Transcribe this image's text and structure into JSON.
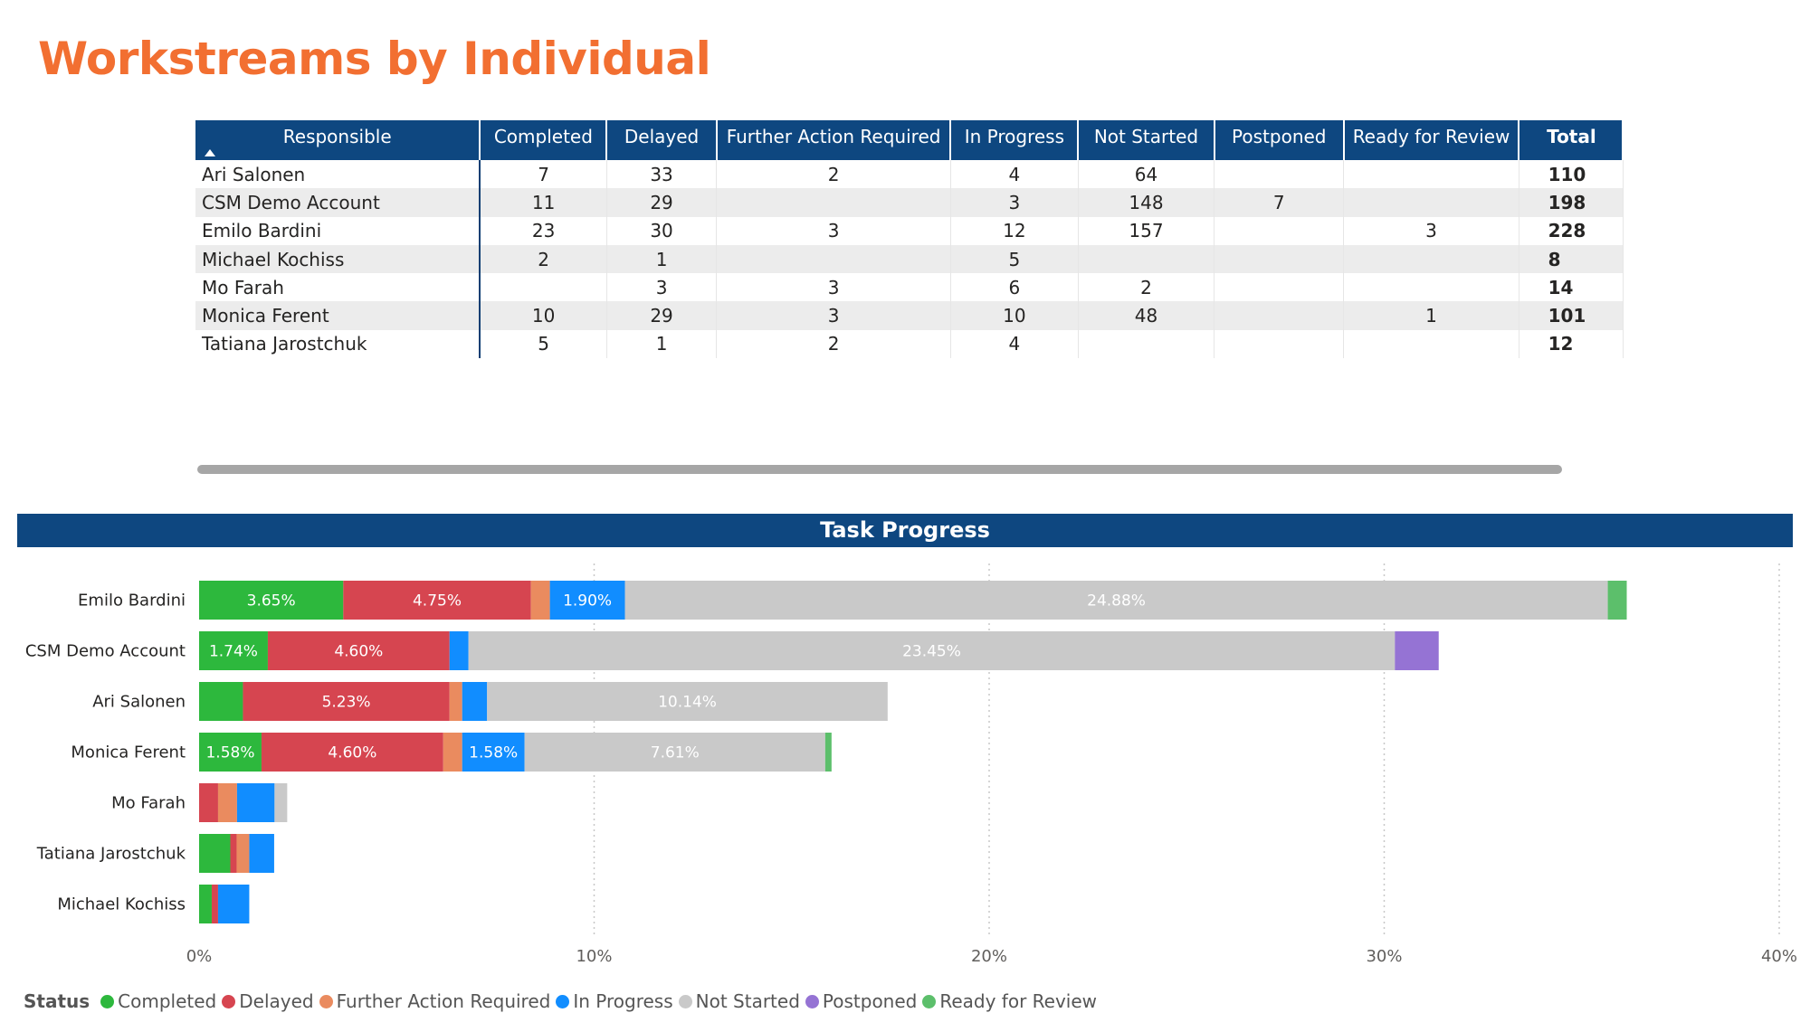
{
  "title": "Workstreams by Individual",
  "colors": {
    "title": "#f26f31",
    "header_bg": "#0e4780",
    "completed": "#2db83d",
    "delayed": "#d64550",
    "further_action_required": "#ea8b5f",
    "in_progress": "#118dff",
    "not_started": "#c9c9c9",
    "postponed": "#9573d4",
    "ready_for_review": "#5cbf6b"
  },
  "matrix": {
    "headers": [
      "Responsible",
      "Completed",
      "Delayed",
      "Further Action Required",
      "In Progress",
      "Not Started",
      "Postponed",
      "Ready for Review",
      "Total"
    ],
    "rows": [
      {
        "name": "Ari Salonen",
        "cells": [
          "7",
          "33",
          "2",
          "4",
          "64",
          "",
          ""
        ],
        "total": "110"
      },
      {
        "name": "CSM Demo Account",
        "cells": [
          "11",
          "29",
          "",
          "3",
          "148",
          "7",
          ""
        ],
        "total": "198"
      },
      {
        "name": "Emilo Bardini",
        "cells": [
          "23",
          "30",
          "3",
          "12",
          "157",
          "",
          "3"
        ],
        "total": "228"
      },
      {
        "name": "Michael Kochiss",
        "cells": [
          "2",
          "1",
          "",
          "5",
          "",
          "",
          ""
        ],
        "total": "8"
      },
      {
        "name": "Mo Farah",
        "cells": [
          "",
          "3",
          "3",
          "6",
          "2",
          "",
          ""
        ],
        "total": "14"
      },
      {
        "name": "Monica Ferent",
        "cells": [
          "10",
          "29",
          "3",
          "10",
          "48",
          "",
          "1"
        ],
        "total": "101"
      },
      {
        "name": "Tatiana Jarostchuk",
        "cells": [
          "5",
          "1",
          "2",
          "4",
          "",
          "",
          ""
        ],
        "total": "12"
      }
    ]
  },
  "chart_title": "Task Progress",
  "legend": {
    "title": "Status",
    "items": [
      {
        "label": "Completed",
        "color": "#2db83d"
      },
      {
        "label": "Delayed",
        "color": "#d64550"
      },
      {
        "label": "Further Action Required",
        "color": "#ea8b5f"
      },
      {
        "label": "In Progress",
        "color": "#118dff"
      },
      {
        "label": "Not Started",
        "color": "#c9c9c9"
      },
      {
        "label": "Postponed",
        "color": "#9573d4"
      },
      {
        "label": "Ready for Review",
        "color": "#5cbf6b"
      }
    ]
  },
  "chart_data": {
    "type": "bar",
    "orientation": "horizontal",
    "stacked": true,
    "title": "Task Progress",
    "categories": [
      "Emilo Bardini",
      "CSM Demo Account",
      "Ari Salonen",
      "Monica Ferent",
      "Mo Farah",
      "Tatiana Jarostchuk",
      "Michael Kochiss"
    ],
    "xlim": [
      0,
      40
    ],
    "xticks": [
      "0%",
      "10%",
      "20%",
      "30%",
      "40%"
    ],
    "grid": true,
    "legend_position": "bottom-left",
    "series": [
      {
        "name": "Completed",
        "color": "#2db83d",
        "values": [
          3.65,
          1.74,
          1.11,
          1.58,
          0,
          0.79,
          0.32
        ],
        "labels": [
          "3.65%",
          "1.74%",
          "",
          "1.58%",
          "",
          "",
          ""
        ]
      },
      {
        "name": "Delayed",
        "color": "#d64550",
        "values": [
          4.75,
          4.6,
          5.23,
          4.6,
          0.48,
          0.16,
          0.16
        ],
        "labels": [
          "4.75%",
          "4.60%",
          "5.23%",
          "4.60%",
          "",
          "",
          ""
        ]
      },
      {
        "name": "Further Action Required",
        "color": "#ea8b5f",
        "values": [
          0.48,
          0,
          0.32,
          0.48,
          0.48,
          0.32,
          0
        ],
        "labels": [
          "",
          "",
          "",
          "",
          "",
          "",
          ""
        ]
      },
      {
        "name": "In Progress",
        "color": "#118dff",
        "values": [
          1.9,
          0.48,
          0.63,
          1.58,
          0.95,
          0.63,
          0.79
        ],
        "labels": [
          "1.90%",
          "",
          "",
          "1.58%",
          "",
          "",
          ""
        ]
      },
      {
        "name": "Not Started",
        "color": "#c9c9c9",
        "values": [
          24.88,
          23.45,
          10.14,
          7.61,
          0.32,
          0,
          0
        ],
        "labels": [
          "24.88%",
          "23.45%",
          "10.14%",
          "7.61%",
          "",
          "",
          ""
        ]
      },
      {
        "name": "Postponed",
        "color": "#9573d4",
        "values": [
          0,
          1.11,
          0,
          0,
          0,
          0,
          0
        ],
        "labels": [
          "",
          "",
          "",
          "",
          "",
          "",
          ""
        ]
      },
      {
        "name": "Ready for Review",
        "color": "#5cbf6b",
        "values": [
          0.48,
          0,
          0,
          0.16,
          0,
          0,
          0
        ],
        "labels": [
          "",
          "",
          "",
          "",
          "",
          "",
          ""
        ]
      }
    ]
  }
}
